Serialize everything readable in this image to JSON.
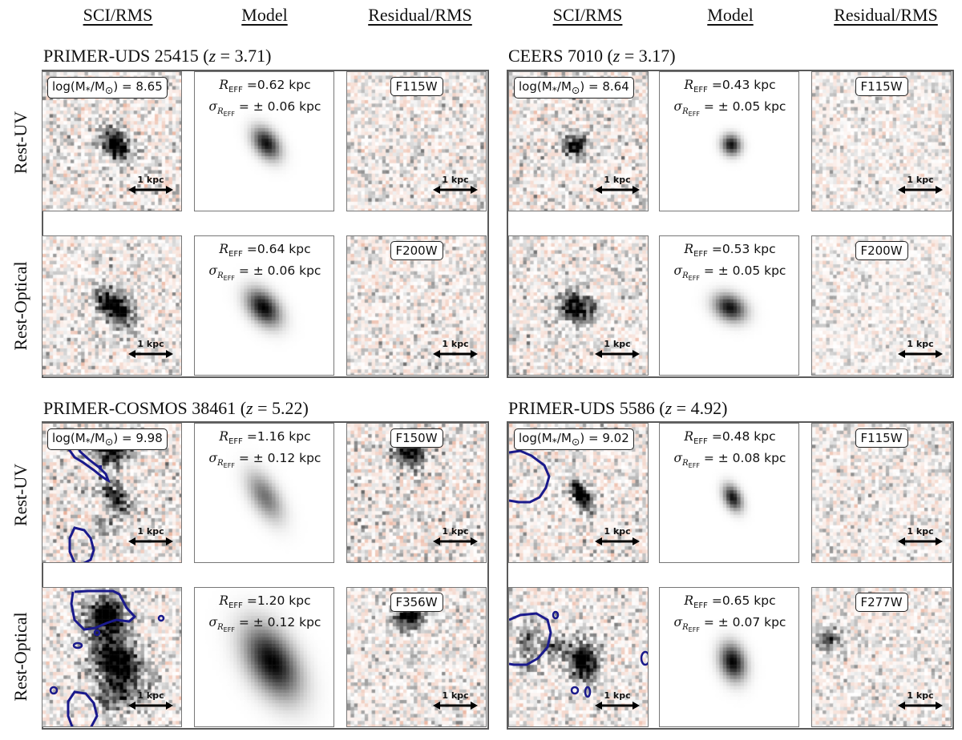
{
  "column_headers": [
    "SCI/RMS",
    "Model",
    "Residual/RMS",
    "SCI/RMS",
    "Model",
    "Residual/RMS"
  ],
  "row_labels": [
    "Rest-UV",
    "Rest-Optical"
  ],
  "scale_bar_text": "1 kpc",
  "galaxies": [
    {
      "name": "PRIMER-UDS 25415",
      "redshift": "3.71",
      "log_mass": "8.65",
      "rows": [
        {
          "filter": "F115W",
          "reff": "0.62 kpc",
          "sigma": "± 0.06 kpc"
        },
        {
          "filter": "F200W",
          "reff": "0.64 kpc",
          "sigma": "± 0.06 kpc"
        }
      ]
    },
    {
      "name": "CEERS 7010",
      "redshift": "3.17",
      "log_mass": "8.64",
      "rows": [
        {
          "filter": "F115W",
          "reff": "0.43 kpc",
          "sigma": "± 0.05 kpc"
        },
        {
          "filter": "F200W",
          "reff": "0.53 kpc",
          "sigma": "± 0.05 kpc"
        }
      ]
    },
    {
      "name": "PRIMER-COSMOS 38461",
      "redshift": "5.22",
      "log_mass": "9.98",
      "rows": [
        {
          "filter": "F150W",
          "reff": "1.16 kpc",
          "sigma": "± 0.12 kpc"
        },
        {
          "filter": "F356W",
          "reff": "1.20 kpc",
          "sigma": "± 0.12 kpc"
        }
      ]
    },
    {
      "name": "PRIMER-UDS 5586",
      "redshift": "4.92",
      "log_mass": "9.02",
      "rows": [
        {
          "filter": "F115W",
          "reff": "0.48 kpc",
          "sigma": "± 0.08 kpc"
        },
        {
          "filter": "F277W",
          "reff": "0.65 kpc",
          "sigma": "± 0.07 kpc"
        }
      ]
    }
  ],
  "colors": {
    "frame": "#5a5a5a",
    "contour": "#1a1a8c",
    "noise_positive": "#808080",
    "noise_negative": "#d9734a"
  }
}
